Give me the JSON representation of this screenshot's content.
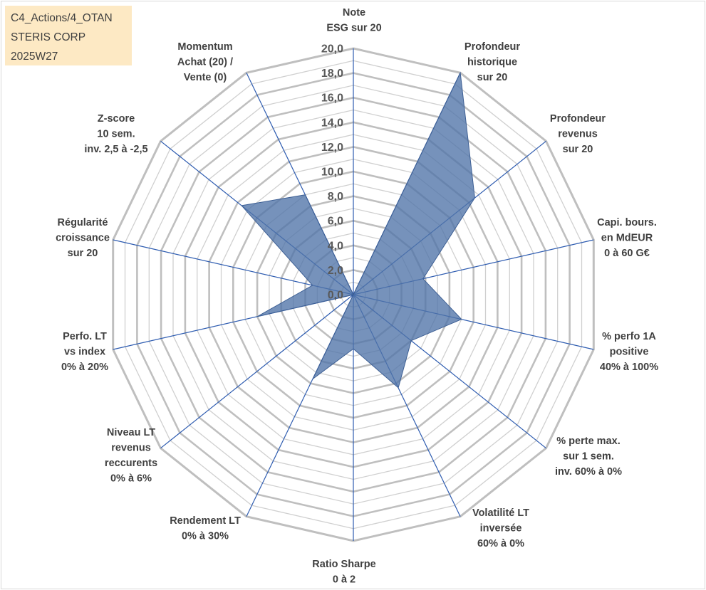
{
  "info_box": {
    "lines": [
      "C4_Actions/4_OTAN",
      "STERIS CORP",
      "2025W27"
    ]
  },
  "chart_data": {
    "type": "radar",
    "axes": [
      [
        "Note",
        "ESG sur 20"
      ],
      [
        "Profondeur",
        "historique",
        "sur 20"
      ],
      [
        "Profondeur",
        "revenus",
        "sur 20"
      ],
      [
        "Capi. bours.",
        "en MdEUR",
        "0 à 60 G€"
      ],
      [
        "% perfo 1A",
        "positive",
        "40% à 100%"
      ],
      [
        "% perte max.",
        "sur 1 sem.",
        "inv. 60% à 0%"
      ],
      [
        "Volatilité LT",
        "inversée",
        "60% à 0%"
      ],
      [
        "Ratio Sharpe",
        "0 à 2"
      ],
      [
        "Rendement LT",
        "0% à 30%"
      ],
      [
        "Niveau LT",
        "revenus",
        "reccurents",
        "0% à 6%"
      ],
      [
        "Perfo. LT",
        "vs index",
        "0% à 20%"
      ],
      [
        "Régularité",
        "croissance",
        "sur 20"
      ],
      [
        "Z-score",
        "10 sem.",
        "inv. 2,5 à -2,5"
      ],
      [
        "Momentum",
        "Achat (20) /",
        "Vente (0)"
      ]
    ],
    "series": [
      {
        "values": [
          0,
          20,
          12.6,
          5.8,
          9.0,
          6.0,
          8.4,
          4.4,
          7.6,
          0,
          8.0,
          3.4,
          11.6,
          9.0
        ]
      }
    ],
    "rlim": [
      0,
      20
    ],
    "ticks": [
      "0,0",
      "2,0",
      "4,0",
      "6,0",
      "8,0",
      "10,0",
      "12,0",
      "14,0",
      "16,0",
      "18,0",
      "20,0"
    ],
    "colors": {
      "fill": "#4f73a8",
      "fill_opacity": 0.78,
      "outline": "#3d5f94",
      "spoke": "#2e5cb0",
      "ring": "#bfbfbf",
      "ring_minor": "#d0d0d0"
    }
  }
}
